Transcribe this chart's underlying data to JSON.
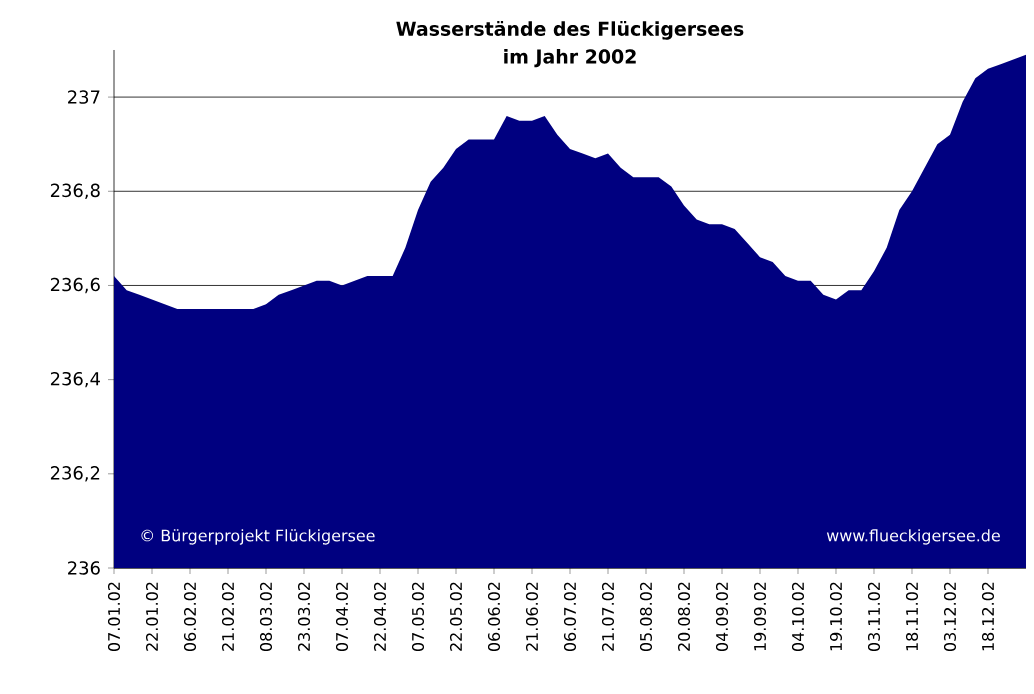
{
  "chart_data": {
    "type": "area",
    "title": "Wasserstände des Flückigersees",
    "subtitle": "im Jahr 2002",
    "categories": [
      "07.01.02",
      null,
      null,
      "22.01.02",
      null,
      null,
      "06.02.02",
      null,
      null,
      "21.02.02",
      null,
      null,
      "08.03.02",
      null,
      null,
      "23.03.02",
      null,
      null,
      "07.04.02",
      null,
      null,
      "22.04.02",
      null,
      null,
      "07.05.02",
      null,
      null,
      "22.05.02",
      null,
      null,
      "06.06.02",
      null,
      null,
      "21.06.02",
      null,
      null,
      "06.07.02",
      null,
      null,
      "21.07.02",
      null,
      null,
      "05.08.02",
      null,
      null,
      "20.08.02",
      null,
      null,
      "04.09.02",
      null,
      null,
      "19.09.02",
      null,
      null,
      "04.10.02",
      null,
      null,
      "19.10.02",
      null,
      null,
      "03.11.02",
      null,
      null,
      "18.11.02",
      null,
      null,
      "03.12.02",
      null,
      null,
      "18.12.02",
      null,
      null,
      null
    ],
    "values": [
      236.62,
      236.59,
      236.58,
      236.57,
      236.56,
      236.55,
      236.55,
      236.55,
      236.55,
      236.55,
      236.55,
      236.55,
      236.56,
      236.58,
      236.59,
      236.6,
      236.61,
      236.61,
      236.6,
      236.61,
      236.62,
      236.62,
      236.62,
      236.68,
      236.76,
      236.82,
      236.85,
      236.89,
      236.91,
      236.91,
      236.91,
      236.96,
      236.95,
      236.95,
      236.96,
      236.92,
      236.89,
      236.88,
      236.87,
      236.88,
      236.85,
      236.83,
      236.83,
      236.83,
      236.81,
      236.77,
      236.74,
      236.73,
      236.73,
      236.72,
      236.69,
      236.66,
      236.65,
      236.62,
      236.61,
      236.61,
      236.58,
      236.57,
      236.59,
      236.59,
      236.63,
      236.68,
      236.76,
      236.8,
      236.85,
      236.9,
      236.92,
      236.99,
      237.04,
      237.06,
      237.07,
      237.08,
      237.09
    ],
    "color": "#000080",
    "ylim": [
      236,
      237.1
    ],
    "yticks": [
      236,
      {
        "value": 236.2,
        "label": "236,2"
      },
      {
        "value": 236.4,
        "label": "236,4"
      },
      {
        "value": 236.6,
        "label": "236,6"
      },
      {
        "value": 236.8,
        "label": "236,8"
      },
      237
    ],
    "grid": "y",
    "annotations": [
      "© Bürgerprojekt Flückigersee",
      "www.flueckigersee.de"
    ]
  }
}
